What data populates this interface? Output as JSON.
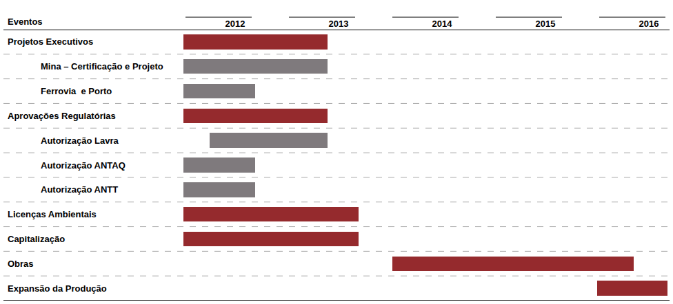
{
  "chart_data": {
    "type": "gantt",
    "orientation": "horizontal",
    "ylabel": "Eventos",
    "categories": [
      "Projetos Executivos",
      "Mina – Certificação e Projeto",
      "Ferrovia  e Porto",
      "Aprovações Regulatórias",
      "Autorização Lavra",
      "Autorização ANTAQ",
      "Autorização ANTT",
      "Licenças Ambientais",
      "Capitalização",
      "Obras",
      "Expansão da Produção"
    ],
    "start": [
      2012.0,
      2012.0,
      2012.0,
      2012.0,
      2012.25,
      2012.0,
      2012.0,
      2012.0,
      2012.0,
      2014.02,
      2016.0
    ],
    "end": [
      2013.39,
      2013.39,
      2012.69,
      2013.39,
      2013.39,
      2012.69,
      2012.69,
      2013.69,
      2013.69,
      2016.35,
      2016.68
    ],
    "colors": [
      "#952a2d",
      "#7f7a7d",
      "#7f7a7d",
      "#952a2d",
      "#7f7a7d",
      "#7f7a7d",
      "#7f7a7d",
      "#952a2d",
      "#952a2d",
      "#952a2d",
      "#952a2d"
    ],
    "xlim": [
      2012,
      2016.7
    ],
    "xticks": [
      {
        "value": 2012.5,
        "label": "2012"
      },
      {
        "value": 2013.5,
        "label": "2013"
      },
      {
        "value": 2014.5,
        "label": "2014"
      },
      {
        "value": 2015.5,
        "label": "2015"
      },
      {
        "value": 2016.5,
        "label": "2016"
      }
    ],
    "grid": false
  }
}
